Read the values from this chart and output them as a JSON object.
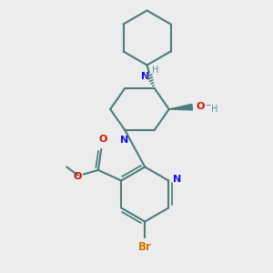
{
  "bg_color": "#ececec",
  "bond_color": "#4a7c7c",
  "N_color": "#1515dd",
  "O_color": "#cc1100",
  "Br_color": "#cc7700",
  "H_color": "#5a9090",
  "lw": 1.5,
  "figsize": [
    3.0,
    3.0
  ],
  "dpi": 100,
  "xlim": [
    20,
    260
  ],
  "ylim": [
    20,
    280
  ]
}
